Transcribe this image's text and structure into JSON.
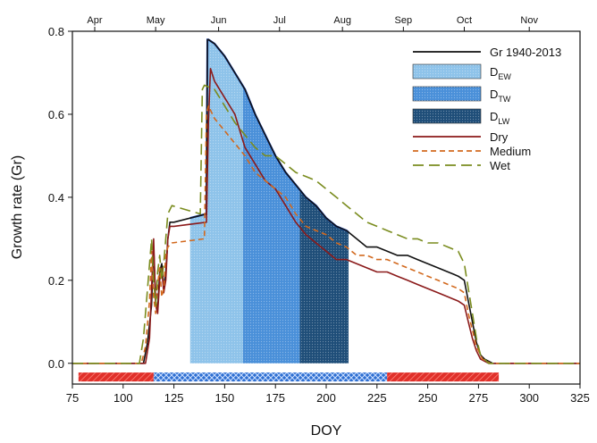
{
  "chart_data": {
    "type": "line",
    "xlabel": "DOY",
    "ylabel": "Growth rate (Gr)",
    "xlim": [
      75,
      325
    ],
    "ylim": [
      -0.05,
      0.8
    ],
    "x_ticks": [
      75,
      100,
      125,
      150,
      175,
      200,
      225,
      250,
      275,
      300,
      325
    ],
    "y_ticks": [
      0.0,
      0.2,
      0.4,
      0.6,
      0.8
    ],
    "y_tick_labels": [
      "0.0",
      "0.2",
      "0.4",
      "0.6",
      "0.8"
    ],
    "months": [
      {
        "label": "Apr",
        "doy": 86
      },
      {
        "label": "May",
        "doy": 116
      },
      {
        "label": "Jun",
        "doy": 147
      },
      {
        "label": "Jul",
        "doy": 177
      },
      {
        "label": "Aug",
        "doy": 208
      },
      {
        "label": "Sep",
        "doy": 238
      },
      {
        "label": "Oct",
        "doy": 268
      },
      {
        "label": "Nov",
        "doy": 300
      }
    ],
    "legend": {
      "placement": "top-right",
      "entries": [
        {
          "key": "gr",
          "text": "Gr 1940-2013",
          "sub": "",
          "style": "line",
          "color": "#111111"
        },
        {
          "key": "dew",
          "text": "D",
          "sub": "EW",
          "style": "patch",
          "color": "#8ec3ea"
        },
        {
          "key": "dtw",
          "text": "D",
          "sub": "TW",
          "style": "patch",
          "color": "#4a90d9"
        },
        {
          "key": "dlw",
          "text": "D",
          "sub": "LW",
          "style": "patch",
          "color": "#1f4e79"
        },
        {
          "key": "dry",
          "text": "Dry",
          "sub": "",
          "style": "line",
          "color": "#8b1a1a"
        },
        {
          "key": "medium",
          "text": "Medium",
          "sub": "",
          "style": "dash",
          "color": "#d2691e"
        },
        {
          "key": "wet",
          "text": "Wet",
          "sub": "",
          "style": "longdash",
          "color": "#7a8c1e"
        }
      ]
    },
    "phases": [
      {
        "name": "D_EW",
        "from": 133,
        "to": 159,
        "color": "#8ec3ea"
      },
      {
        "name": "D_TW",
        "from": 159,
        "to": 187,
        "color": "#4a90d9"
      },
      {
        "name": "D_LW",
        "from": 187,
        "to": 211,
        "color": "#1f4e79"
      }
    ],
    "bottom_bars": [
      {
        "from": 78,
        "to": 115,
        "y": -0.033,
        "color": "#e0302a",
        "pattern": "hatch"
      },
      {
        "from": 115,
        "to": 230,
        "y": -0.033,
        "color": "#2e6fd1",
        "pattern": "cross"
      },
      {
        "from": 230,
        "to": 285,
        "y": -0.033,
        "color": "#e0302a",
        "pattern": "hatch"
      }
    ],
    "series": [
      {
        "name": "Gr 1940-2013",
        "color": "#111111",
        "dash": "",
        "width": 1.6,
        "x": [
          75,
          110,
          112,
          114,
          115,
          116,
          117,
          118,
          119,
          120,
          121,
          122,
          123,
          125,
          141,
          141.5,
          142,
          145,
          150,
          155,
          160,
          165,
          170,
          175,
          180,
          185,
          190,
          195,
          200,
          205,
          210,
          215,
          220,
          225,
          230,
          235,
          240,
          245,
          250,
          255,
          260,
          265,
          268,
          270,
          272,
          274,
          276,
          278,
          282,
          325
        ],
        "y": [
          0,
          0,
          0.05,
          0.14,
          0.28,
          0.15,
          0.13,
          0.22,
          0.24,
          0.18,
          0.22,
          0.3,
          0.34,
          0.34,
          0.36,
          0.78,
          0.78,
          0.77,
          0.74,
          0.7,
          0.66,
          0.6,
          0.55,
          0.5,
          0.46,
          0.43,
          0.4,
          0.38,
          0.35,
          0.33,
          0.32,
          0.3,
          0.28,
          0.28,
          0.27,
          0.26,
          0.26,
          0.25,
          0.24,
          0.23,
          0.22,
          0.21,
          0.2,
          0.15,
          0.1,
          0.05,
          0.02,
          0.01,
          0,
          0
        ]
      },
      {
        "name": "Dry",
        "color": "#8b1a1a",
        "dash": "",
        "width": 1.6,
        "x": [
          75,
          111,
          113,
          114,
          115,
          116,
          117,
          118,
          119,
          120,
          121,
          122,
          123,
          125,
          141,
          142,
          143,
          145,
          150,
          155,
          160,
          165,
          170,
          175,
          180,
          185,
          190,
          195,
          200,
          205,
          210,
          215,
          220,
          225,
          230,
          235,
          240,
          245,
          250,
          255,
          260,
          265,
          268,
          270,
          272,
          274,
          276,
          280,
          325
        ],
        "y": [
          0,
          0,
          0.06,
          0.18,
          0.3,
          0.14,
          0.12,
          0.2,
          0.23,
          0.17,
          0.2,
          0.3,
          0.33,
          0.33,
          0.34,
          0.58,
          0.71,
          0.68,
          0.64,
          0.6,
          0.52,
          0.48,
          0.44,
          0.42,
          0.38,
          0.34,
          0.31,
          0.29,
          0.27,
          0.25,
          0.25,
          0.24,
          0.23,
          0.22,
          0.22,
          0.21,
          0.2,
          0.19,
          0.18,
          0.17,
          0.16,
          0.15,
          0.14,
          0.1,
          0.06,
          0.03,
          0.01,
          0,
          0
        ]
      },
      {
        "name": "Medium",
        "color": "#d2691e",
        "dash": "6,4",
        "width": 1.6,
        "x": [
          75,
          109,
          111,
          113,
          114,
          115,
          116,
          117,
          118,
          119,
          120,
          121,
          122,
          124,
          140,
          141,
          142,
          145,
          150,
          155,
          160,
          165,
          170,
          175,
          180,
          185,
          190,
          195,
          200,
          205,
          210,
          215,
          220,
          225,
          230,
          235,
          240,
          245,
          250,
          255,
          260,
          265,
          268,
          270,
          272,
          274,
          277,
          281,
          325
        ],
        "y": [
          0,
          0,
          0.04,
          0.15,
          0.27,
          0.16,
          0.12,
          0.19,
          0.23,
          0.16,
          0.18,
          0.26,
          0.28,
          0.29,
          0.3,
          0.6,
          0.62,
          0.59,
          0.56,
          0.53,
          0.5,
          0.46,
          0.44,
          0.42,
          0.4,
          0.36,
          0.33,
          0.32,
          0.31,
          0.29,
          0.28,
          0.26,
          0.26,
          0.25,
          0.25,
          0.24,
          0.23,
          0.22,
          0.21,
          0.2,
          0.19,
          0.18,
          0.17,
          0.12,
          0.08,
          0.04,
          0.01,
          0,
          0
        ]
      },
      {
        "name": "Wet",
        "color": "#7a8c1e",
        "dash": "12,6",
        "width": 1.6,
        "x": [
          75,
          108,
          110,
          112,
          114,
          115,
          116,
          117,
          118,
          119,
          120,
          122,
          124,
          138,
          139,
          140,
          145,
          150,
          155,
          160,
          165,
          170,
          175,
          180,
          185,
          190,
          195,
          200,
          205,
          210,
          215,
          220,
          225,
          230,
          235,
          240,
          245,
          250,
          255,
          260,
          265,
          268,
          270,
          272,
          274,
          276,
          280,
          325
        ],
        "y": [
          0,
          0,
          0.06,
          0.18,
          0.3,
          0.2,
          0.14,
          0.22,
          0.26,
          0.2,
          0.24,
          0.36,
          0.38,
          0.36,
          0.66,
          0.67,
          0.66,
          0.62,
          0.58,
          0.55,
          0.52,
          0.5,
          0.5,
          0.48,
          0.46,
          0.45,
          0.44,
          0.42,
          0.4,
          0.38,
          0.36,
          0.34,
          0.33,
          0.32,
          0.31,
          0.3,
          0.3,
          0.29,
          0.29,
          0.28,
          0.27,
          0.24,
          0.18,
          0.12,
          0.06,
          0.02,
          0,
          0
        ]
      }
    ]
  }
}
